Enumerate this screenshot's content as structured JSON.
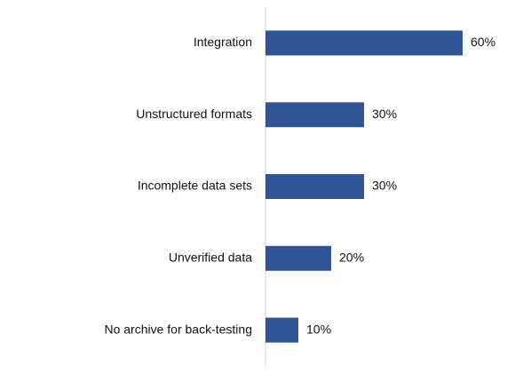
{
  "chart_data": {
    "type": "bar",
    "orientation": "horizontal",
    "categories": [
      "Integration",
      "Unstructured formats",
      "Incomplete data sets",
      "Unverified data",
      "No archive for back-testing"
    ],
    "values": [
      60,
      30,
      30,
      20,
      10
    ],
    "value_labels": [
      "60%",
      "30%",
      "30%",
      "20%",
      "10%"
    ],
    "color": "#2f5597"
  }
}
